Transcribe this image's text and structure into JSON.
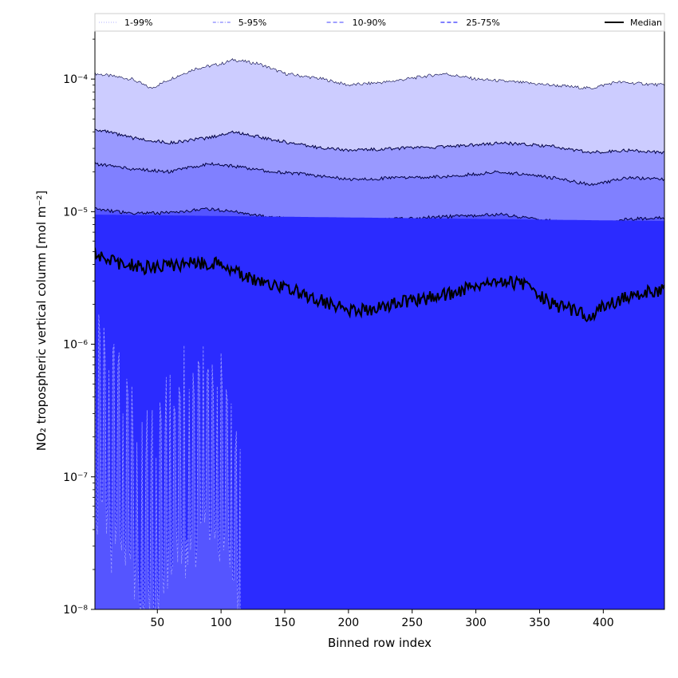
{
  "chart_data": {
    "type": "area",
    "title": "",
    "xlabel": "Binned row index",
    "ylabel": "NO₂ tropospheric vertical column [mol m⁻²]",
    "xlim": [
      1,
      448
    ],
    "ylim": [
      1e-08,
      0.00023
    ],
    "yscale": "log",
    "x_ticks": [
      50,
      100,
      150,
      200,
      250,
      300,
      350,
      400
    ],
    "y_ticks": [
      {
        "value": 1e-08,
        "label": "10⁻⁸"
      },
      {
        "value": 1e-07,
        "label": "10⁻⁷"
      },
      {
        "value": 1e-06,
        "label": "10⁻⁶"
      },
      {
        "value": 1e-05,
        "label": "10⁻⁵"
      },
      {
        "value": 0.0001,
        "label": "10⁻⁴"
      }
    ],
    "grid": false,
    "legend_position": "top",
    "legend": [
      {
        "label": "1-99%",
        "style": "dotted",
        "color": "#ccccff"
      },
      {
        "label": "5-95%",
        "style": "dashdot",
        "color": "#9999ff"
      },
      {
        "label": "10-90%",
        "style": "dashed",
        "color": "#8080ff"
      },
      {
        "label": "25-75%",
        "style": "dashed",
        "color": "#5555ff"
      },
      {
        "label": "Median",
        "style": "solid",
        "color": "#000000"
      }
    ],
    "bands": [
      {
        "name": "1-99%",
        "color": "#ccccff",
        "upper": [
          [
            1,
            0.00011
          ],
          [
            30,
            0.0001
          ],
          [
            45,
            8.5e-05
          ],
          [
            60,
            0.0001
          ],
          [
            80,
            0.00012
          ],
          [
            100,
            0.00013
          ],
          [
            110,
            0.00014
          ],
          [
            130,
            0.00013
          ],
          [
            150,
            0.00011
          ],
          [
            180,
            0.0001
          ],
          [
            200,
            9e-05
          ],
          [
            230,
            9.5e-05
          ],
          [
            260,
            0.000105
          ],
          [
            275,
            0.00011
          ],
          [
            300,
            0.0001
          ],
          [
            330,
            9.5e-05
          ],
          [
            360,
            9e-05
          ],
          [
            390,
            8.5e-05
          ],
          [
            410,
            9.5e-05
          ],
          [
            448,
            9e-05
          ]
        ]
      },
      {
        "name": "5-95%",
        "color": "#9999ff",
        "upper": [
          [
            1,
            4.2e-05
          ],
          [
            30,
            3.6e-05
          ],
          [
            60,
            3.3e-05
          ],
          [
            90,
            3.6e-05
          ],
          [
            110,
            4e-05
          ],
          [
            140,
            3.5e-05
          ],
          [
            170,
            3.1e-05
          ],
          [
            200,
            2.9e-05
          ],
          [
            240,
            3e-05
          ],
          [
            280,
            3.1e-05
          ],
          [
            320,
            3.3e-05
          ],
          [
            360,
            3.1e-05
          ],
          [
            390,
            2.8e-05
          ],
          [
            420,
            2.9e-05
          ],
          [
            448,
            2.8e-05
          ]
        ]
      },
      {
        "name": "10-90%",
        "color": "#8080ff",
        "upper": [
          [
            1,
            2.3e-05
          ],
          [
            30,
            2.1e-05
          ],
          [
            60,
            2e-05
          ],
          [
            90,
            2.3e-05
          ],
          [
            110,
            2.2e-05
          ],
          [
            140,
            2e-05
          ],
          [
            170,
            1.9e-05
          ],
          [
            200,
            1.75e-05
          ],
          [
            240,
            1.8e-05
          ],
          [
            280,
            1.85e-05
          ],
          [
            320,
            2e-05
          ],
          [
            360,
            1.8e-05
          ],
          [
            390,
            1.6e-05
          ],
          [
            420,
            1.8e-05
          ],
          [
            448,
            1.75e-05
          ]
        ]
      },
      {
        "name": "25-75%",
        "color": "#5555ff",
        "upper": [
          [
            1,
            1.05e-05
          ],
          [
            30,
            9.7e-06
          ],
          [
            60,
            9.8e-06
          ],
          [
            90,
            1.05e-05
          ],
          [
            110,
            1e-05
          ],
          [
            140,
            9e-06
          ],
          [
            170,
            8.8e-06
          ],
          [
            200,
            8.4e-06
          ],
          [
            240,
            8.8e-06
          ],
          [
            280,
            9.2e-06
          ],
          [
            320,
            9.5e-06
          ],
          [
            360,
            8.5e-06
          ],
          [
            390,
            7.7e-06
          ],
          [
            420,
            8.8e-06
          ],
          [
            448,
            9e-06
          ]
        ]
      },
      {
        "name": "inner",
        "color": "#2b2bff",
        "upper": [
          [
            1,
            9.5e-06
          ],
          [
            448,
            8.5e-06
          ]
        ]
      }
    ],
    "median": [
      [
        1,
        4.8e-06
      ],
      [
        20,
        4.1e-06
      ],
      [
        40,
        3.8e-06
      ],
      [
        60,
        3.9e-06
      ],
      [
        80,
        4.1e-06
      ],
      [
        100,
        4e-06
      ],
      [
        110,
        3.7e-06
      ],
      [
        120,
        3.2e-06
      ],
      [
        140,
        2.8e-06
      ],
      [
        160,
        2.5e-06
      ],
      [
        180,
        2.1e-06
      ],
      [
        200,
        1.8e-06
      ],
      [
        220,
        1.8e-06
      ],
      [
        240,
        2.1e-06
      ],
      [
        260,
        2.2e-06
      ],
      [
        280,
        2.4e-06
      ],
      [
        300,
        2.8e-06
      ],
      [
        320,
        3e-06
      ],
      [
        340,
        2.8e-06
      ],
      [
        360,
        2e-06
      ],
      [
        380,
        1.75e-06
      ],
      [
        390,
        1.6e-06
      ],
      [
        400,
        1.9e-06
      ],
      [
        420,
        2.3e-06
      ],
      [
        435,
        2.5e-06
      ],
      [
        448,
        2.6e-06
      ]
    ],
    "lower_tail": {
      "color": "#5555ff",
      "x_end": 115,
      "region": [
        [
          1,
          1.2e-06
        ],
        [
          8,
          8e-07
        ],
        [
          15,
          6e-07
        ],
        [
          25,
          4e-07
        ],
        [
          35,
          2.5e-07
        ],
        [
          45,
          2e-07
        ],
        [
          55,
          3e-07
        ],
        [
          65,
          5e-07
        ],
        [
          75,
          6e-07
        ],
        [
          85,
          8e-07
        ],
        [
          95,
          6e-07
        ],
        [
          105,
          4e-07
        ],
        [
          115,
          2e-07
        ]
      ]
    }
  }
}
